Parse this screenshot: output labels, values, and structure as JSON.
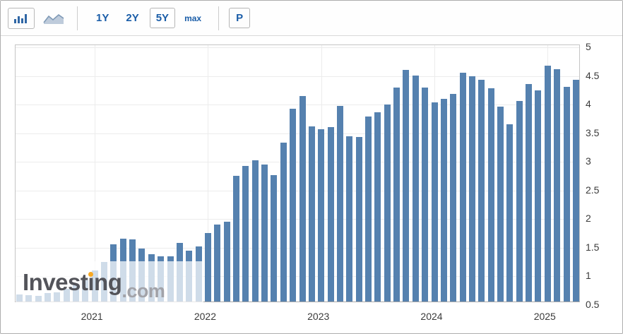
{
  "toolbar": {
    "chart_type": {
      "bar_selected": true,
      "bar_icon": "bar-chart-icon",
      "line_icon": "area-chart-icon"
    },
    "range_buttons": [
      {
        "label": "1Y",
        "selected": false
      },
      {
        "label": "2Y",
        "selected": false
      },
      {
        "label": "5Y",
        "selected": true
      },
      {
        "label": "max",
        "selected": false
      }
    ],
    "p_button_label": "P"
  },
  "watermark": {
    "brand_prefix": "Invest",
    "brand_dotless_i": "ı",
    "brand_suffix": "ng",
    "domain": ".com",
    "dot_color": "#f7a823"
  },
  "chart_data": {
    "type": "bar",
    "title": "",
    "xlabel": "",
    "ylabel": "",
    "ylim": [
      0.5,
      5
    ],
    "grid": true,
    "y_axis_position": "right",
    "bar_color": "#5581af",
    "y_tick_labels": [
      "5",
      "4.5",
      "4",
      "3.5",
      "3",
      "2.5",
      "2",
      "1.5",
      "1",
      "0.5"
    ],
    "y_tick_values": [
      5,
      4.5,
      4,
      3.5,
      3,
      2.5,
      2,
      1.5,
      1,
      0.5
    ],
    "x_tick_labels": [
      "2021",
      "2022",
      "2023",
      "2024",
      "2025"
    ],
    "categories": [
      "May 2020",
      "Jun 2020",
      "Jul 2020",
      "Aug 2020",
      "Sep 2020",
      "Oct 2020",
      "Nov 2020",
      "Dec 2020",
      "Jan 2021",
      "Feb 2021",
      "Mar 2021",
      "Apr 2021",
      "May 2021",
      "Jun 2021",
      "Jul 2021",
      "Aug 2021",
      "Sep 2021",
      "Oct 2021",
      "Nov 2021",
      "Dec 2021",
      "Jan 2022",
      "Feb 2022",
      "Mar 2022",
      "Apr 2022",
      "May 2022",
      "Jun 2022",
      "Jul 2022",
      "Aug 2022",
      "Sep 2022",
      "Oct 2022",
      "Nov 2022",
      "Dec 2022",
      "Jan 2023",
      "Feb 2023",
      "Mar 2023",
      "Apr 2023",
      "May 2023",
      "Jun 2023",
      "Jul 2023",
      "Aug 2023",
      "Sep 2023",
      "Oct 2023",
      "Nov 2023",
      "Dec 2023",
      "Jan 2024",
      "Feb 2024",
      "Mar 2024",
      "Apr 2024",
      "May 2024",
      "Jun 2024",
      "Jul 2024",
      "Aug 2024",
      "Sep 2024",
      "Oct 2024",
      "Nov 2024",
      "Dec 2024",
      "Jan 2025",
      "Feb 2025",
      "Mar 2025",
      "Apr 2025"
    ],
    "values": [
      0.68,
      0.67,
      0.65,
      0.7,
      0.72,
      0.78,
      0.85,
      0.92,
      1.1,
      1.25,
      1.55,
      1.66,
      1.64,
      1.48,
      1.38,
      1.35,
      1.35,
      1.58,
      1.44,
      1.52,
      1.75,
      1.9,
      1.95,
      2.75,
      2.92,
      3.03,
      2.95,
      2.77,
      3.33,
      3.93,
      4.15,
      3.62,
      3.57,
      3.6,
      3.97,
      3.45,
      3.43,
      3.79,
      3.86,
      4.0,
      4.3,
      4.6,
      4.51,
      4.3,
      4.04,
      4.1,
      4.19,
      4.55,
      4.49,
      4.43,
      4.28,
      3.96,
      3.65,
      4.06,
      4.36,
      4.25,
      4.68,
      4.62,
      4.31,
      4.43
    ]
  }
}
